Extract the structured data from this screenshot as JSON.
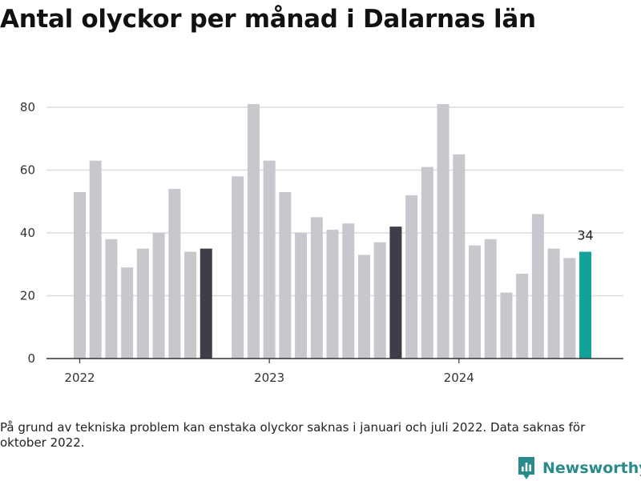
{
  "title": "Antal olyckor per månad i Dalarnas län",
  "footnote": "På grund av tekniska problem kan enstaka olyckor saknas i januari och juli 2022. Data saknas för oktober 2022.",
  "brand": {
    "name": "Newsworthy",
    "icon": "newsworthy-logo-icon",
    "color": "#2a8c8a"
  },
  "colors": {
    "bar": "#c8c7ce",
    "highlight": "#3e3e4b",
    "latest": "#12a29a",
    "grid": "#dcdcdc",
    "axis": "#333333"
  },
  "chart_data": {
    "type": "bar",
    "title": "Antal olyckor per månad i Dalarnas län",
    "xlabel": "",
    "ylabel": "",
    "ylim": [
      0,
      80
    ],
    "yticks": [
      0,
      20,
      40,
      60,
      80
    ],
    "grid": true,
    "legend": "none",
    "year_labels": [
      {
        "label": "2022",
        "at": "2022-01"
      },
      {
        "label": "2023",
        "at": "2023-01"
      },
      {
        "label": "2024",
        "at": "2024-01"
      }
    ],
    "categories": [
      "2022-01",
      "2022-02",
      "2022-03",
      "2022-04",
      "2022-05",
      "2022-06",
      "2022-07",
      "2022-08",
      "2022-09",
      "2022-10",
      "2022-11",
      "2022-12",
      "2023-01",
      "2023-02",
      "2023-03",
      "2023-04",
      "2023-05",
      "2023-06",
      "2023-07",
      "2023-08",
      "2023-09",
      "2023-10",
      "2023-11",
      "2023-12",
      "2024-01",
      "2024-02",
      "2024-03",
      "2024-04",
      "2024-05",
      "2024-06",
      "2024-07",
      "2024-08",
      "2024-09"
    ],
    "values": [
      53,
      63,
      38,
      29,
      35,
      40,
      54,
      34,
      35,
      null,
      58,
      81,
      63,
      53,
      40,
      45,
      41,
      43,
      33,
      37,
      42,
      52,
      61,
      81,
      65,
      36,
      38,
      21,
      27,
      46,
      35,
      32,
      34
    ],
    "highlight": [
      "2022-09",
      "2023-09"
    ],
    "latest": {
      "category": "2024-09",
      "label": "34"
    }
  }
}
